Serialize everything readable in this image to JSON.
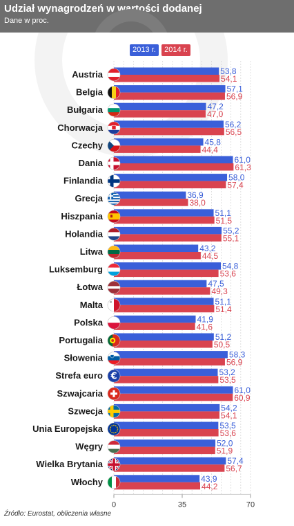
{
  "header": {
    "title": "Udział wynagrodzeń w wartości dodanej",
    "subtitle": "Dane w proc."
  },
  "legend": {
    "label_2013": "2013 r.",
    "label_2014": "2014 r."
  },
  "source": "Źródło: Eurostat, obliczenia własne",
  "colors": {
    "series_2013": "#3a5fd9",
    "series_2014": "#d9434f",
    "header_bg": "#6e6e6e"
  },
  "chart_data": {
    "type": "bar",
    "orientation": "horizontal",
    "categories": [
      "Austria",
      "Belgia",
      "Bułgaria",
      "Chorwacja",
      "Czechy",
      "Dania",
      "Finlandia",
      "Grecja",
      "Hiszpania",
      "Holandia",
      "Litwa",
      "Luksemburg",
      "Łotwa",
      "Malta",
      "Polska",
      "Portugalia",
      "Słowenia",
      "Strefa euro",
      "Szwajcaria",
      "Szwecja",
      "Unia Europejska",
      "Węgry",
      "Wielka Brytania",
      "Włochy"
    ],
    "flags": [
      "austria",
      "belgium",
      "bulgaria",
      "croatia",
      "czechia",
      "denmark",
      "finland",
      "greece",
      "spain",
      "netherlands",
      "lithuania",
      "luxembourg",
      "latvia",
      "malta",
      "poland",
      "portugal",
      "slovenia",
      "euro",
      "switzerland",
      "sweden",
      "eu",
      "hungary",
      "uk",
      "italy"
    ],
    "series": [
      {
        "name": "2013 r.",
        "values": [
          53.8,
          57.1,
          47.2,
          56.2,
          45.8,
          61.0,
          58.0,
          36.9,
          51.1,
          55.2,
          43.2,
          54.8,
          47.5,
          51.1,
          41.9,
          51.2,
          58.3,
          53.2,
          61.0,
          54.2,
          53.5,
          52.0,
          57.4,
          43.9
        ],
        "labels": [
          "53,8",
          "57,1",
          "47,2",
          "56,2",
          "45,8",
          "61,0",
          "58,0",
          "36,9",
          "51,1",
          "55,2",
          "43,2",
          "54,8",
          "47,5",
          "51,1",
          "41,9",
          "51,2",
          "58,3",
          "53,2",
          "61,0",
          "54,2",
          "53,5",
          "52,0",
          "57,4",
          "43,9"
        ]
      },
      {
        "name": "2014 r.",
        "values": [
          54.1,
          56.9,
          47.0,
          56.5,
          44.4,
          61.3,
          57.4,
          38.0,
          51.5,
          55.1,
          44.5,
          53.6,
          49.3,
          51.4,
          41.6,
          50.5,
          56.9,
          53.5,
          60.9,
          54.1,
          53.6,
          51.9,
          56.7,
          44.2
        ],
        "labels": [
          "54,1",
          "56,9",
          "47,0",
          "56,5",
          "44,4",
          "61,3",
          "57,4",
          "38,0",
          "51,5",
          "55,1",
          "44,5",
          "53,6",
          "49,3",
          "51,4",
          "41,6",
          "50,5",
          "56,9",
          "53,5",
          "60,9",
          "54,1",
          "53,6",
          "51,9",
          "56,7",
          "44,2"
        ]
      }
    ],
    "xticks": [
      0,
      35,
      70
    ],
    "xlim": [
      0,
      70
    ],
    "grid": true,
    "legend_position": "top"
  }
}
